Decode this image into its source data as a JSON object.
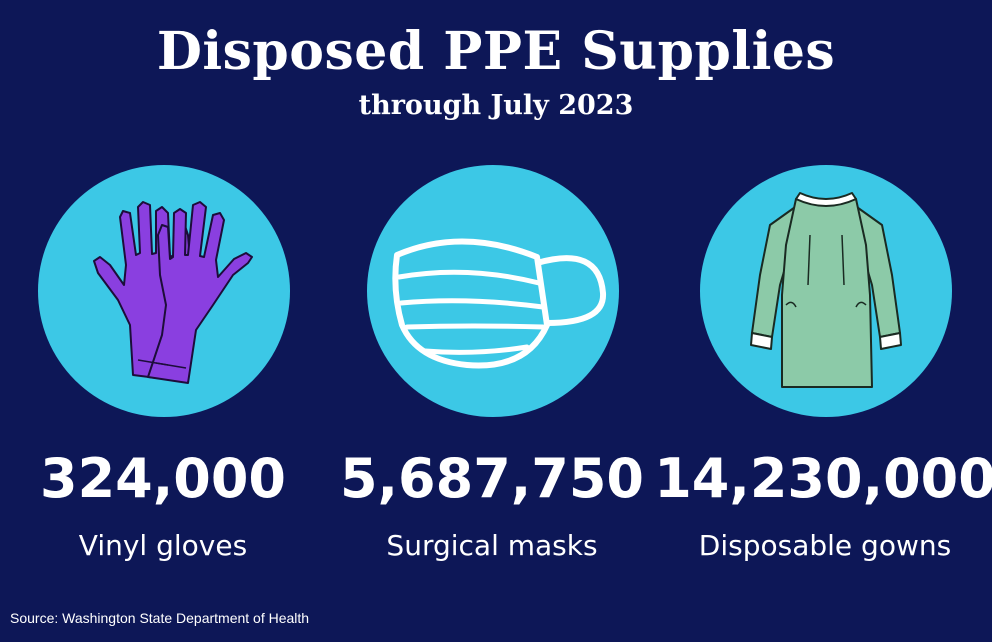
{
  "title": "Disposed PPE Supplies",
  "subtitle": "through July 2023",
  "items": [
    {
      "value": "324,000",
      "label": "Vinyl gloves",
      "icon": "gloves-icon"
    },
    {
      "value": "5,687,750",
      "label": "Surgical masks",
      "icon": "surgical-mask-icon"
    },
    {
      "value": "14,230,000",
      "label": "Disposable gowns",
      "icon": "gown-icon"
    }
  ],
  "source": "Source: Washington State Department of Health",
  "colors": {
    "background": "#0d1757",
    "circle": "#3cc8e6",
    "gloves": "#8a3fe0",
    "mask": "#ffffff",
    "gown": "#8ccaa8"
  }
}
